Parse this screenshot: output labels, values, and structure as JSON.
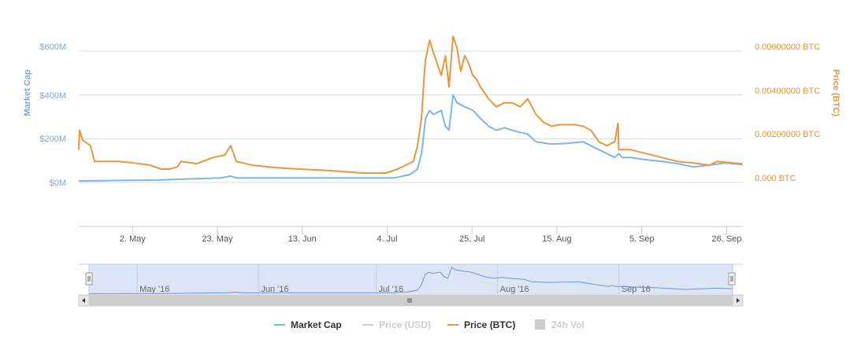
{
  "chart_data": {
    "type": "line",
    "x_unit": "days since 2016-04-19",
    "xlim": [
      -0.3,
      164.0
    ],
    "y_left": {
      "label": "Market Cap",
      "ticks": [
        "$0M",
        "$200M",
        "$400M",
        "$600M"
      ],
      "tick_values": [
        0,
        200,
        400,
        600
      ],
      "unit": "USD millions",
      "ylim_note": "gridlines 0-600"
    },
    "y_right": {
      "label": "Price (BTC)",
      "ticks": [
        "0.000 BTC",
        "0.00200000 BTC",
        "0.00400000 BTC",
        "0.00600000 BTC"
      ],
      "tick_values": [
        0,
        0.002,
        0.004,
        0.006
      ]
    },
    "x_ticks": [
      "2. May",
      "23. May",
      "13. Jun",
      "4. Jul",
      "25. Jul",
      "15. Aug",
      "5. Sep",
      "26. Sep"
    ],
    "x_tick_days": [
      13,
      34,
      55,
      76,
      97,
      118,
      139,
      160
    ],
    "navigator_ticks": [
      "May '16",
      "Jun '16",
      "Jul '16",
      "Aug '16",
      "Sep '16"
    ],
    "navigator_tick_days": [
      12,
      43,
      73,
      104,
      135
    ],
    "grid": true,
    "legend_placement": "bottom-center",
    "legend": [
      {
        "name": "Market Cap",
        "color": "#7cb5ec",
        "symbol": "line",
        "visible": true
      },
      {
        "name": "Price (USD)",
        "color": "#cccccc",
        "symbol": "line",
        "visible": false
      },
      {
        "name": "Price (BTC)",
        "color": "#e8973f",
        "symbol": "line",
        "visible": true
      },
      {
        "name": "24h Vol",
        "color": "#cccccc",
        "symbol": "box",
        "visible": false
      }
    ],
    "series": [
      {
        "name": "Market Cap",
        "axis": "left",
        "color": "#7cb5ec",
        "points": [
          [
            -0.3,
            7
          ],
          [
            19.2,
            11
          ],
          [
            34.8,
            21
          ],
          [
            37.3,
            29
          ],
          [
            38.7,
            21
          ],
          [
            58.2,
            21
          ],
          [
            77.7,
            21
          ],
          [
            81.6,
            36
          ],
          [
            83.5,
            61
          ],
          [
            84.5,
            132
          ],
          [
            85.5,
            293
          ],
          [
            86.5,
            329
          ],
          [
            87.4,
            311
          ],
          [
            89.4,
            329
          ],
          [
            90.4,
            257
          ],
          [
            91.3,
            239
          ],
          [
            92.3,
            400
          ],
          [
            93.3,
            364
          ],
          [
            95.2,
            346
          ],
          [
            97.2,
            329
          ],
          [
            99.1,
            293
          ],
          [
            101.1,
            257
          ],
          [
            103.0,
            239
          ],
          [
            105.0,
            250
          ],
          [
            106.9,
            239
          ],
          [
            108.9,
            229
          ],
          [
            110.8,
            221
          ],
          [
            112.8,
            186
          ],
          [
            116.7,
            175
          ],
          [
            120.6,
            179
          ],
          [
            124.5,
            186
          ],
          [
            128.4,
            150
          ],
          [
            132.3,
            114
          ],
          [
            133.3,
            132
          ],
          [
            134.2,
            114
          ],
          [
            136.2,
            114
          ],
          [
            140.1,
            104
          ],
          [
            144.0,
            96
          ],
          [
            147.9,
            86
          ],
          [
            151.8,
            71
          ],
          [
            155.7,
            79
          ],
          [
            159.6,
            89
          ],
          [
            163.9,
            82
          ]
        ]
      },
      {
        "name": "Price (BTC)",
        "axis": "right",
        "color": "#e8973f",
        "points": [
          [
            -0.3,
            0.0015
          ],
          [
            -0.1,
            0.00239
          ],
          [
            0.7,
            0.00193
          ],
          [
            2.6,
            0.00168
          ],
          [
            3.6,
            0.00096
          ],
          [
            5.6,
            0.00096
          ],
          [
            9.5,
            0.00096
          ],
          [
            13.4,
            0.00089
          ],
          [
            17.3,
            0.00079
          ],
          [
            20.2,
            0.00061
          ],
          [
            22.1,
            0.00061
          ],
          [
            24.1,
            0.00071
          ],
          [
            25.0,
            0.00096
          ],
          [
            28.9,
            0.00086
          ],
          [
            32.9,
            0.00114
          ],
          [
            35.8,
            0.00125
          ],
          [
            37.3,
            0.00168
          ],
          [
            38.7,
            0.00096
          ],
          [
            42.6,
            0.00079
          ],
          [
            48.4,
            0.00068
          ],
          [
            54.3,
            0.00061
          ],
          [
            62.1,
            0.00054
          ],
          [
            69.9,
            0.00043
          ],
          [
            75.7,
            0.00043
          ],
          [
            78.6,
            0.00061
          ],
          [
            80.6,
            0.00079
          ],
          [
            82.5,
            0.00096
          ],
          [
            83.5,
            0.00168
          ],
          [
            84.5,
            0.00293
          ],
          [
            85.1,
            0.00471
          ],
          [
            85.5,
            0.00561
          ],
          [
            86.5,
            0.0065
          ],
          [
            87.4,
            0.00596
          ],
          [
            88.4,
            0.00543
          ],
          [
            89.4,
            0.00489
          ],
          [
            90.4,
            0.00579
          ],
          [
            91.3,
            0.00436
          ],
          [
            92.3,
            0.00668
          ],
          [
            93.3,
            0.00614
          ],
          [
            94.2,
            0.00507
          ],
          [
            95.2,
            0.00579
          ],
          [
            96.2,
            0.00543
          ],
          [
            97.2,
            0.00489
          ],
          [
            98.1,
            0.00471
          ],
          [
            99.1,
            0.00436
          ],
          [
            101.1,
            0.00382
          ],
          [
            103.0,
            0.00346
          ],
          [
            105.0,
            0.00364
          ],
          [
            106.9,
            0.00364
          ],
          [
            108.9,
            0.00346
          ],
          [
            110.8,
            0.00382
          ],
          [
            112.8,
            0.00311
          ],
          [
            114.7,
            0.00275
          ],
          [
            116.7,
            0.00257
          ],
          [
            118.6,
            0.00264
          ],
          [
            120.6,
            0.00264
          ],
          [
            122.5,
            0.00264
          ],
          [
            124.5,
            0.00257
          ],
          [
            126.4,
            0.00239
          ],
          [
            128.4,
            0.00186
          ],
          [
            130.3,
            0.00168
          ],
          [
            132.3,
            0.00186
          ],
          [
            133.1,
            0.0027
          ],
          [
            133.3,
            0.0015
          ],
          [
            136.2,
            0.0015
          ],
          [
            140.1,
            0.00132
          ],
          [
            144.0,
            0.00114
          ],
          [
            147.9,
            0.00096
          ],
          [
            151.8,
            0.00089
          ],
          [
            155.7,
            0.00079
          ],
          [
            157.6,
            0.00096
          ],
          [
            161.5,
            0.00089
          ],
          [
            163.9,
            0.00086
          ]
        ]
      }
    ]
  }
}
